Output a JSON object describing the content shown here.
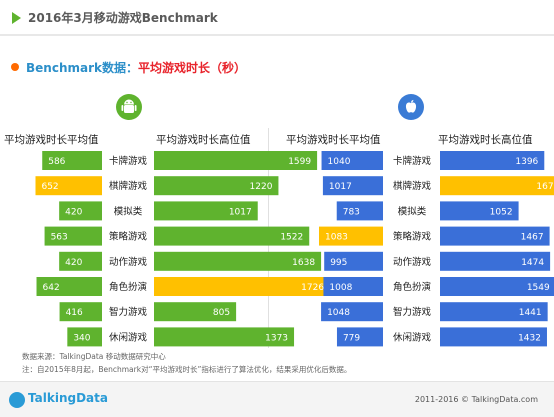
{
  "header": {
    "title": "2016年3月移动游戏Benchmark"
  },
  "subtitle": {
    "main": "Benchmark数据：",
    "highlight": "平均游戏时长（秒）"
  },
  "icons": {
    "android": "android-icon",
    "apple": "apple-icon"
  },
  "columns": {
    "android_avg": "平均游戏时长平均值",
    "android_high": "平均游戏时长高位值",
    "ios_avg": "平均游戏时长平均值",
    "ios_high": "平均游戏时长高位值"
  },
  "colors": {
    "green": "#5fb32e",
    "blue": "#3a6fd8",
    "yellow": "#ffc000"
  },
  "chart_data": {
    "type": "bar",
    "title": "平均游戏时长（秒）",
    "categories": [
      "卡牌游戏",
      "棋牌游戏",
      "模拟类",
      "策略游戏",
      "动作游戏",
      "角色扮演",
      "智力游戏",
      "休闲游戏"
    ],
    "android": {
      "avg": [
        586,
        652,
        420,
        563,
        420,
        642,
        416,
        340
      ],
      "high": [
        1599,
        1220,
        1017,
        1522,
        1638,
        1726,
        805,
        1373
      ],
      "highlight_avg_index": 1,
      "highlight_high_index": 5
    },
    "ios": {
      "avg": [
        1040,
        1017,
        783,
        1083,
        995,
        1008,
        1048,
        779
      ],
      "high": [
        1396,
        1677,
        1052,
        1467,
        1474,
        1549,
        1441,
        1432
      ],
      "highlight_avg_index": 3,
      "highlight_high_index": 1
    }
  },
  "footer": {
    "source": "数据来源：TalkingData 移动数据研究中心",
    "note": "注：自2015年8月起，Benchmark对“平均游戏时长”指标进行了算法优化，结果采用优化后数据。",
    "logo": "TalkingData",
    "copyright": "2011-2016 © TalkingData.com"
  }
}
